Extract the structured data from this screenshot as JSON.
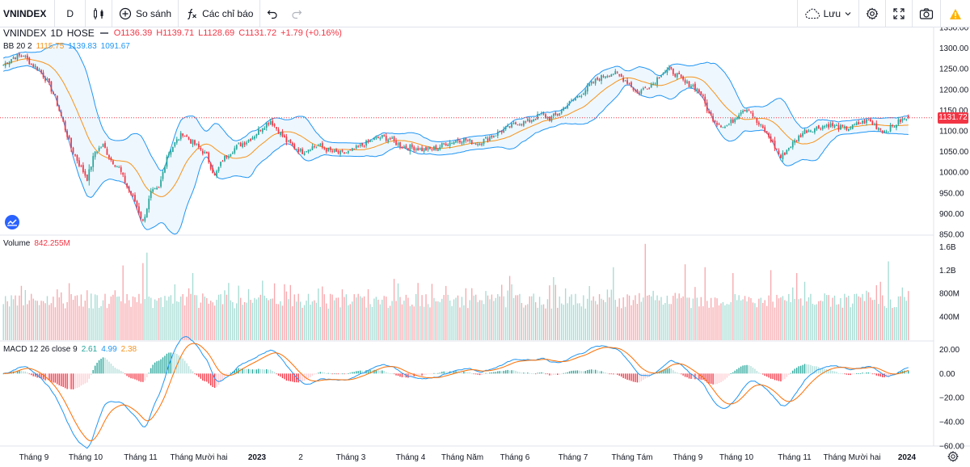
{
  "toolbar": {
    "symbol": "VNINDEX",
    "interval": "D",
    "compare_label": "So sánh",
    "indicators_label": "Các chỉ báo",
    "save_label": "Lưu"
  },
  "legend": {
    "symbol": "VNINDEX",
    "interval": "1D",
    "exchange": "HOSE",
    "open": "O1136.39",
    "high": "H1139.71",
    "low": "L1128.69",
    "close": "C1131.72",
    "change": "+1.79 (+0.16%)",
    "bb_label": "BB 20 2",
    "bb_basis": "1115.75",
    "bb_upper": "1139.83",
    "bb_lower": "1091.67",
    "volume_label": "Volume",
    "volume_value": "842.255M",
    "macd_label": "MACD 12 26 close 9",
    "macd_hist": "2.61",
    "macd_line": "4.99",
    "macd_signal": "2.38",
    "last_price_tag": "1131.72"
  },
  "colors": {
    "up": "#26a69a",
    "down": "#f23645",
    "bb_band": "#2196f3",
    "bb_basis": "#f7931a",
    "macd_line": "#2196f3",
    "signal_line": "#ff6d00"
  },
  "chart_data": [
    {
      "type": "candlestick",
      "title": "VNINDEX 1D HOSE",
      "ylim": [
        850,
        1350
      ],
      "y_ticks": [
        "1350.00",
        "1300.00",
        "1250.00",
        "1200.00",
        "1150.00",
        "1100.00",
        "1050.00",
        "1000.00",
        "950.00",
        "900.00",
        "850.00"
      ],
      "x_ticks": [
        "Tháng 9",
        "Tháng 10",
        "Tháng 11",
        "Tháng Mười hai",
        "2023",
        "2",
        "Tháng 3",
        "Tháng 4",
        "Tháng Năm",
        "Tháng 6",
        "Tháng 7",
        "Tháng Tám",
        "Tháng 9",
        "Tháng 10",
        "Tháng 11",
        "Tháng Mười hai",
        "2024"
      ],
      "close_anchors": [
        [
          0,
          1260
        ],
        [
          5,
          1278
        ],
        [
          10,
          1283
        ],
        [
          14,
          1262
        ],
        [
          18,
          1248
        ],
        [
          22,
          1220
        ],
        [
          26,
          1180
        ],
        [
          30,
          1120
        ],
        [
          34,
          1060
        ],
        [
          38,
          1020
        ],
        [
          42,
          985
        ],
        [
          46,
          1050
        ],
        [
          50,
          1065
        ],
        [
          54,
          1030
        ],
        [
          58,
          1010
        ],
        [
          62,
          965
        ],
        [
          66,
          930
        ],
        [
          70,
          880
        ],
        [
          74,
          950
        ],
        [
          78,
          960
        ],
        [
          82,
          1040
        ],
        [
          86,
          1070
        ],
        [
          90,
          1095
        ],
        [
          94,
          1075
        ],
        [
          98,
          1060
        ],
        [
          102,
          1040
        ],
        [
          106,
          990
        ],
        [
          110,
          1030
        ],
        [
          114,
          1050
        ],
        [
          118,
          1065
        ],
        [
          122,
          1075
        ],
        [
          126,
          1090
        ],
        [
          130,
          1110
        ],
        [
          134,
          1125
        ],
        [
          138,
          1100
        ],
        [
          142,
          1075
        ],
        [
          146,
          1060
        ],
        [
          150,
          1050
        ],
        [
          154,
          1060
        ],
        [
          158,
          1065
        ],
        [
          162,
          1055
        ],
        [
          166,
          1048
        ],
        [
          170,
          1045
        ],
        [
          174,
          1050
        ],
        [
          178,
          1060
        ],
        [
          182,
          1070
        ],
        [
          186,
          1080
        ],
        [
          190,
          1085
        ],
        [
          194,
          1080
        ],
        [
          198,
          1068
        ],
        [
          202,
          1060
        ],
        [
          206,
          1060
        ],
        [
          210,
          1055
        ],
        [
          214,
          1055
        ],
        [
          218,
          1060
        ],
        [
          222,
          1070
        ],
        [
          226,
          1075
        ],
        [
          230,
          1080
        ],
        [
          234,
          1075
        ],
        [
          238,
          1070
        ],
        [
          242,
          1080
        ],
        [
          246,
          1090
        ],
        [
          250,
          1100
        ],
        [
          254,
          1110
        ],
        [
          258,
          1120
        ],
        [
          262,
          1120
        ],
        [
          266,
          1130
        ],
        [
          270,
          1140
        ],
        [
          274,
          1130
        ],
        [
          278,
          1140
        ],
        [
          282,
          1160
        ],
        [
          286,
          1175
        ],
        [
          290,
          1190
        ],
        [
          294,
          1210
        ],
        [
          298,
          1225
        ],
        [
          302,
          1235
        ],
        [
          306,
          1240
        ],
        [
          310,
          1230
        ],
        [
          314,
          1215
        ],
        [
          318,
          1190
        ],
        [
          322,
          1205
        ],
        [
          326,
          1215
        ],
        [
          330,
          1240
        ],
        [
          334,
          1248
        ],
        [
          338,
          1235
        ],
        [
          342,
          1215
        ],
        [
          346,
          1210
        ],
        [
          350,
          1190
        ],
        [
          354,
          1140
        ],
        [
          358,
          1120
        ],
        [
          362,
          1110
        ],
        [
          366,
          1125
        ],
        [
          370,
          1150
        ],
        [
          374,
          1155
        ],
        [
          378,
          1120
        ],
        [
          382,
          1100
        ],
        [
          386,
          1070
        ],
        [
          390,
          1035
        ],
        [
          394,
          1060
        ],
        [
          398,
          1080
        ],
        [
          402,
          1100
        ],
        [
          406,
          1105
        ],
        [
          410,
          1110
        ],
        [
          414,
          1115
        ],
        [
          418,
          1110
        ],
        [
          422,
          1105
        ],
        [
          426,
          1110
        ],
        [
          430,
          1120
        ],
        [
          434,
          1125
        ],
        [
          438,
          1110
        ],
        [
          442,
          1100
        ],
        [
          446,
          1110
        ],
        [
          450,
          1125
        ],
        [
          454,
          1131.72
        ]
      ],
      "bollinger": {
        "period": 20,
        "mult": 2,
        "basis_last": 1115.75,
        "upper_last": 1139.83,
        "lower_last": 1091.67
      },
      "last_close": 1131.72
    },
    {
      "type": "bar",
      "title": "Volume",
      "ylim": [
        0,
        1800
      ],
      "unit": "M",
      "y_ticks": [
        "1.6B",
        "1.2B",
        "800M",
        "400M"
      ],
      "last_value": 842.255,
      "spikes": [
        [
          60,
          1280
        ],
        [
          70,
          1320
        ],
        [
          72,
          1500
        ],
        [
          95,
          1150
        ],
        [
          130,
          1020
        ],
        [
          160,
          920
        ],
        [
          196,
          1050
        ],
        [
          208,
          980
        ],
        [
          254,
          1100
        ],
        [
          276,
          1080
        ],
        [
          306,
          1250
        ],
        [
          322,
          1650
        ],
        [
          342,
          1300
        ],
        [
          352,
          1250
        ],
        [
          366,
          1150
        ],
        [
          385,
          1200
        ],
        [
          398,
          1150
        ],
        [
          402,
          1000
        ],
        [
          440,
          1000
        ],
        [
          444,
          1350
        ],
        [
          454,
          842.255
        ]
      ]
    },
    {
      "type": "line",
      "title": "MACD 12 26 close 9",
      "ylim": [
        -60,
        27
      ],
      "y_ticks": [
        "20.00",
        "0.00",
        "−20.00",
        "−40.00",
        "−60.00"
      ],
      "macd_last": 4.99,
      "signal_last": 2.38,
      "histogram_last": 2.61
    }
  ]
}
